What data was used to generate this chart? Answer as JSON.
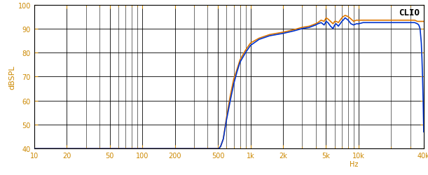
{
  "ylabel": "dBSPL",
  "xlabel": "Hz",
  "clio_label": "CLIO",
  "ylim": [
    40,
    100
  ],
  "xlim": [
    10,
    40000
  ],
  "yticks": [
    40,
    50,
    60,
    70,
    80,
    90,
    100
  ],
  "ytick_labels": [
    "40",
    "50",
    "60",
    "70",
    "80",
    "90",
    "100"
  ],
  "xticks": [
    10,
    20,
    50,
    100,
    200,
    500,
    1000,
    2000,
    5000,
    10000,
    40000
  ],
  "xticklabels": [
    "10",
    "20",
    "50",
    "100",
    "200",
    "500",
    "1k",
    "2k",
    "5k",
    "10k",
    "40k"
  ],
  "bg_color": "#ffffff",
  "grid_color": "#000000",
  "label_color": "#cc8800",
  "line_blue": "#0033cc",
  "line_orange": "#dd7700",
  "blue_x": [
    10,
    499,
    510,
    530,
    560,
    600,
    650,
    700,
    750,
    800,
    900,
    1000,
    1200,
    1500,
    2000,
    2500,
    3000,
    3500,
    4000,
    4200,
    4500,
    4800,
    5000,
    5200,
    5500,
    5800,
    6000,
    6200,
    6500,
    7000,
    7200,
    7500,
    8000,
    8500,
    9000,
    9500,
    10000,
    11000,
    12000,
    15000,
    20000,
    25000,
    30000,
    33000,
    35000,
    36000,
    37000,
    37500,
    38000,
    38500,
    39000,
    39500,
    40000
  ],
  "blue_y": [
    40,
    40,
    40,
    41,
    44,
    52,
    60,
    67,
    72,
    76,
    80,
    83,
    85.5,
    87,
    88,
    89,
    90,
    90.5,
    91.5,
    92,
    92.5,
    91.5,
    93,
    92.5,
    91,
    90,
    91.5,
    92,
    91,
    93,
    93.5,
    94.5,
    93.5,
    92,
    91.5,
    92,
    92,
    92.5,
    92.5,
    92.5,
    92.5,
    92.5,
    92.5,
    92.5,
    92,
    91.5,
    90,
    87,
    84,
    78,
    70,
    60,
    47
  ],
  "orange_x": [
    10,
    499,
    510,
    530,
    560,
    600,
    650,
    700,
    750,
    800,
    900,
    1000,
    1200,
    1500,
    2000,
    2500,
    3000,
    3500,
    4000,
    4200,
    4500,
    4800,
    5000,
    5200,
    5500,
    5800,
    6000,
    6200,
    6500,
    7000,
    7200,
    7500,
    8000,
    8500,
    9000,
    9500,
    10000,
    11000,
    12000,
    15000,
    20000,
    25000,
    30000,
    33000,
    35000,
    40000
  ],
  "orange_y": [
    40,
    40,
    40,
    41,
    44,
    53,
    62,
    69,
    73,
    77,
    81,
    84,
    86,
    87.5,
    88.5,
    89.5,
    90.5,
    91,
    92,
    92.5,
    93.5,
    93,
    94.5,
    94,
    93,
    92,
    93,
    93,
    92.5,
    94.5,
    95,
    95.5,
    95,
    94,
    93,
    93.5,
    93.5,
    93.5,
    93.5,
    93.5,
    93.5,
    93.5,
    93.5,
    93.5,
    93,
    93
  ]
}
